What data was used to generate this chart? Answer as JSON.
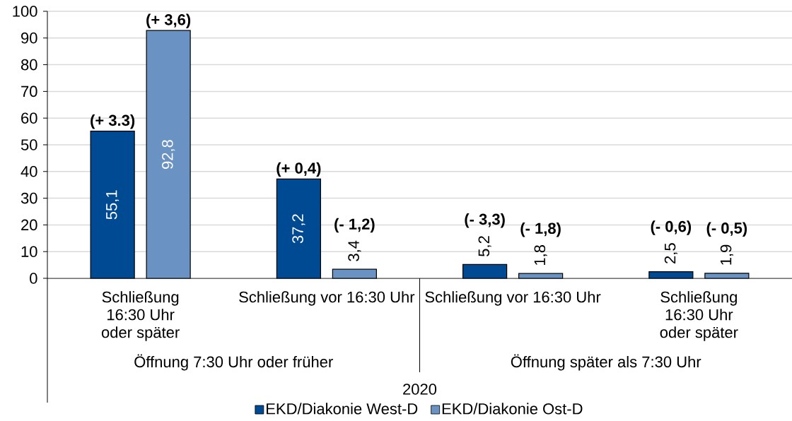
{
  "chart_data": {
    "type": "bar",
    "categories": [
      "Schließung 16:30 Uhr oder später",
      "Schließung vor 16:30 Uhr",
      "Schließung vor 16:30 Uhr",
      "Schließung 16:30 Uhr oder später"
    ],
    "xlabel": "2020",
    "series": [
      {
        "name": "EKD/Diakonie West-D",
        "color": "#004a93",
        "values": [
          55.1,
          37.2,
          5.2,
          2.5
        ],
        "value_labels": [
          "55,1",
          "37,2",
          "5,2",
          "2,5"
        ]
      },
      {
        "name": "EKD/Diakonie Ost-D",
        "color": "#6a92c2",
        "values": [
          92.8,
          3.4,
          1.8,
          1.9
        ],
        "value_labels": [
          "92,8",
          "3,4",
          "1,8",
          "1,9"
        ]
      }
    ],
    "ylim": [
      0,
      100
    ],
    "yticks": [
      0,
      10,
      20,
      30,
      40,
      50,
      60,
      70,
      80,
      90,
      100
    ],
    "grid": "y",
    "legend": "bottom",
    "annotations": [
      "Öffnung 7:30 Uhr oder früher",
      "Öffnung später als 7:30 Uhr",
      "(+ 3.3)",
      "(+ 3,6)",
      "(+ 0,4)",
      "(- 1,2)",
      "(- 3,3)",
      "(- 1,8)",
      "(- 0,6)",
      "(- 0,5)"
    ]
  }
}
